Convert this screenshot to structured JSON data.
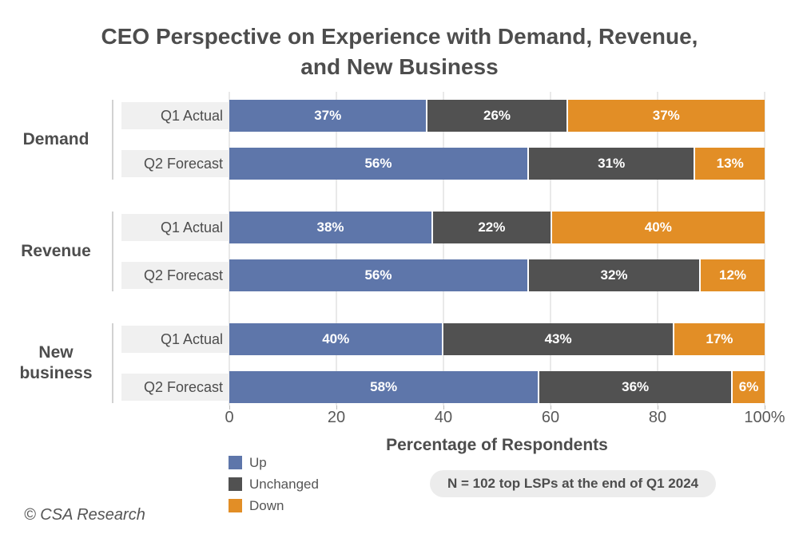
{
  "title": {
    "line1": "CEO Perspective on Experience with Demand, Revenue,",
    "line2": "and New Business"
  },
  "chart_data": {
    "type": "bar",
    "orientation": "horizontal",
    "stacked": true,
    "unit": "%",
    "title": "CEO Perspective on Experience with Demand, Revenue, and New Business",
    "xlabel": "Percentage of Respondents",
    "xlim": [
      0,
      100
    ],
    "grid": true,
    "legend_position": "bottom-left",
    "series": [
      {
        "name": "Up",
        "color": "#5e76aa"
      },
      {
        "name": "Unchanged",
        "color": "#515151"
      },
      {
        "name": "Down",
        "color": "#e28e26"
      }
    ],
    "groups": [
      {
        "label": "Demand",
        "rows": [
          {
            "label": "Q1 Actual",
            "values": [
              37,
              26,
              37
            ],
            "value_labels": [
              "37%",
              "26%",
              "37%"
            ]
          },
          {
            "label": "Q2 Forecast",
            "values": [
              56,
              31,
              13
            ],
            "value_labels": [
              "56%",
              "31%",
              "13%"
            ]
          }
        ]
      },
      {
        "label": "Revenue",
        "rows": [
          {
            "label": "Q1 Actual",
            "values": [
              38,
              22,
              40
            ],
            "value_labels": [
              "38%",
              "22%",
              "40%"
            ]
          },
          {
            "label": "Q2 Forecast",
            "values": [
              56,
              32,
              12
            ],
            "value_labels": [
              "56%",
              "32%",
              "12%"
            ]
          }
        ]
      },
      {
        "label": "New business",
        "rows": [
          {
            "label": "Q1 Actual",
            "values": [
              40,
              43,
              17
            ],
            "value_labels": [
              "40%",
              "43%",
              "17%"
            ]
          },
          {
            "label": "Q2 Forecast",
            "values": [
              58,
              36,
              6
            ],
            "value_labels": [
              "58%",
              "36%",
              "6%"
            ]
          }
        ]
      }
    ],
    "x_ticks": [
      {
        "value": 0,
        "label": "0"
      },
      {
        "value": 20,
        "label": "20"
      },
      {
        "value": 40,
        "label": "40"
      },
      {
        "value": 60,
        "label": "60"
      },
      {
        "value": 80,
        "label": "80"
      },
      {
        "value": 100,
        "label": "100%"
      }
    ]
  },
  "note": "N = 102 top LSPs at the end of Q1 2024",
  "footer": "© CSA Research"
}
